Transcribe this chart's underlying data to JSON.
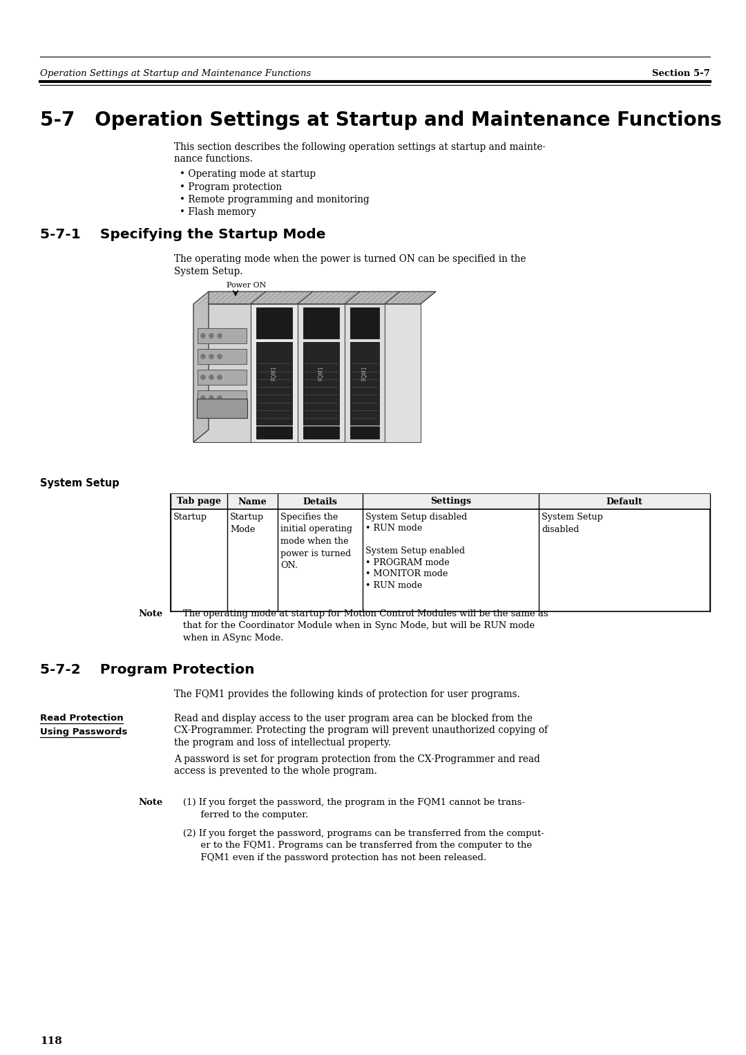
{
  "bg_color": "#ffffff",
  "page_num": "118",
  "header_italic": "Operation Settings at Startup and Maintenance Functions",
  "header_bold": "Section 5-7",
  "main_title": "5-7   Operation Settings at Startup and Maintenance Functions",
  "section_title_1": "5-7-1    Specifying the Startup Mode",
  "intro_line1": "This section describes the following operation settings at startup and mainte-",
  "intro_line2": "nance functions.",
  "bullets": [
    "• Operating mode at startup",
    "• Program protection",
    "• Remote programming and monitoring",
    "• Flash memory"
  ],
  "startup_mode_line1": "The operating mode when the power is turned ON can be specified in the",
  "startup_mode_line2": "System Setup.",
  "power_on_label": "Power ON",
  "system_setup_label": "System Setup",
  "table_headers": [
    "Tab page",
    "Name",
    "Details",
    "Settings",
    "Default"
  ],
  "note_label": "Note",
  "note_text_line1": "The operating mode at startup for Motion Control Modules will be the same as",
  "note_text_line2": "that for the Coordinator Module when in Sync Mode, but will be RUN mode",
  "note_text_line3": "when in ASync Mode.",
  "section_title_2": "5-7-2    Program Protection",
  "program_prot_intro": "The FQM1 provides the following kinds of protection for user programs.",
  "read_prot_label_1": "Read Protection",
  "read_prot_label_2": "Using Passwords",
  "read_prot_line1": "Read and display access to the user program area can be blocked from the",
  "read_prot_line2": "CX-Programmer. Protecting the program will prevent unauthorized copying of",
  "read_prot_line3": "the program and loss of intellectual property.",
  "read_prot_line4": "A password is set for program protection from the CX-Programmer and read",
  "read_prot_line5": "access is prevented to the whole program.",
  "note2_label": "Note",
  "note2_item1_line1": "(1) If you forget the password, the program in the FQM1 cannot be trans-",
  "note2_item1_line2": "      ferred to the computer.",
  "note2_item2_line1": "(2) If you forget the password, programs can be transferred from the comput-",
  "note2_item2_line2": "      er to the FQM1. Programs can be transferred from the computer to the",
  "note2_item2_line3": "      FQM1 even if the password protection has not been released."
}
